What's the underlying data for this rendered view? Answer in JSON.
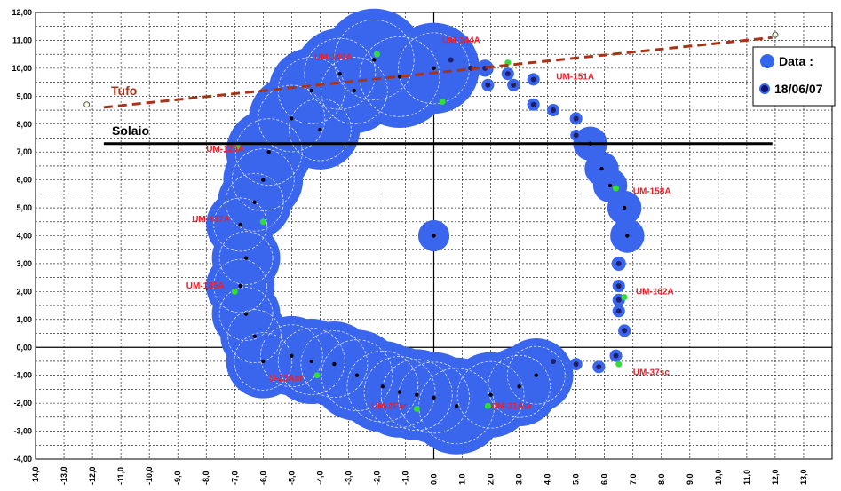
{
  "chart_data": {
    "type": "scatter",
    "x_ticks": [
      "-14,0",
      "-13,0",
      "-12,0",
      "-11,0",
      "-10,0",
      "-9,0",
      "-8,0",
      "-7,0",
      "-6,0",
      "-5,0",
      "-4,0",
      "-3,0",
      "-2,0",
      "-1,0",
      "0,0",
      "1,0",
      "2,0",
      "3,0",
      "4,0",
      "5,0",
      "6,0",
      "7,0",
      "8,0",
      "9,0",
      "10,0",
      "11,0",
      "12,0",
      "13,0"
    ],
    "y_ticks": [
      "-4,00",
      "-3,00",
      "-2,00",
      "-1,00",
      "0,00",
      "1,00",
      "2,00",
      "3,00",
      "4,00",
      "5,00",
      "6,00",
      "7,00",
      "8,00",
      "9,00",
      "10,00",
      "11,00",
      "12,00"
    ],
    "xlim": [
      -14,
      14
    ],
    "ylim": [
      -4,
      12
    ],
    "grid": true,
    "legend": {
      "placement": "top-right",
      "entries": [
        {
          "label": "Data :",
          "color": "#3366ee"
        },
        {
          "label": "18/06/07",
          "color": "#101070"
        }
      ]
    },
    "colors": {
      "bubble": "#3a66ee",
      "center_dot": "#000000",
      "green_dot": "#33dd33",
      "small_marker": "#20206a",
      "tufo_line": "#a83418",
      "solaio_line": "#000000",
      "label_red": "#e8202a"
    },
    "series": [
      {
        "name": "Data :",
        "comment_free": true,
        "points": [
          {
            "x": -2.1,
            "y": 10.3,
            "r": 1.8
          },
          {
            "x": -1.2,
            "y": 9.7,
            "r": 1.8
          },
          {
            "x": 0.0,
            "y": 10.0,
            "r": 1.6
          },
          {
            "x": -3.3,
            "y": 9.8,
            "r": 1.6
          },
          {
            "x": -2.8,
            "y": 9.2,
            "r": 1.5
          },
          {
            "x": -4.3,
            "y": 9.2,
            "r": 1.5
          },
          {
            "x": -5.0,
            "y": 8.2,
            "r": 1.5
          },
          {
            "x": -4.0,
            "y": 7.8,
            "r": 1.4
          },
          {
            "x": -5.8,
            "y": 7.0,
            "r": 1.5
          },
          {
            "x": -6.0,
            "y": 6.0,
            "r": 1.4
          },
          {
            "x": -6.3,
            "y": 5.2,
            "r": 1.3
          },
          {
            "x": -6.8,
            "y": 4.4,
            "r": 1.2
          },
          {
            "x": -6.6,
            "y": 3.2,
            "r": 1.2
          },
          {
            "x": -6.8,
            "y": 2.2,
            "r": 1.2
          },
          {
            "x": -6.6,
            "y": 1.2,
            "r": 1.2
          },
          {
            "x": -6.3,
            "y": 0.4,
            "r": 1.2
          },
          {
            "x": -6.0,
            "y": -0.5,
            "r": 1.3
          },
          {
            "x": -5.0,
            "y": -0.3,
            "r": 1.4
          },
          {
            "x": -4.3,
            "y": -0.5,
            "r": 1.5
          },
          {
            "x": -3.5,
            "y": -0.6,
            "r": 1.5
          },
          {
            "x": -2.7,
            "y": -1.0,
            "r": 1.6
          },
          {
            "x": -1.8,
            "y": -1.4,
            "r": 1.6
          },
          {
            "x": -1.2,
            "y": -1.6,
            "r": 1.6
          },
          {
            "x": -0.6,
            "y": -1.7,
            "r": 1.6
          },
          {
            "x": 0.0,
            "y": -1.8,
            "r": 1.6
          },
          {
            "x": 0.8,
            "y": -2.1,
            "r": 1.7
          },
          {
            "x": 2.0,
            "y": -1.7,
            "r": 1.5
          },
          {
            "x": 3.0,
            "y": -1.4,
            "r": 1.4
          },
          {
            "x": 3.6,
            "y": -1.0,
            "r": 1.3
          },
          {
            "x": 5.5,
            "y": 7.3,
            "r": 0.6
          },
          {
            "x": 5.9,
            "y": 6.4,
            "r": 0.6
          },
          {
            "x": 6.2,
            "y": 5.8,
            "r": 0.6
          },
          {
            "x": 6.7,
            "y": 5.0,
            "r": 0.6
          },
          {
            "x": 6.8,
            "y": 4.0,
            "r": 0.6
          },
          {
            "x": 0.0,
            "y": 4.0,
            "r": 0.55
          },
          {
            "x": 0.6,
            "y": 10.3,
            "r": 0.35
          },
          {
            "x": 1.3,
            "y": 10.0,
            "r": 0.3
          },
          {
            "x": 1.8,
            "y": 10.0,
            "r": 0.3
          },
          {
            "x": 2.6,
            "y": 9.8,
            "r": 0.22
          },
          {
            "x": 1.9,
            "y": 9.4,
            "r": 0.22
          },
          {
            "x": 2.8,
            "y": 9.4,
            "r": 0.22
          },
          {
            "x": 3.5,
            "y": 9.6,
            "r": 0.22
          },
          {
            "x": 3.5,
            "y": 8.7,
            "r": 0.22
          },
          {
            "x": 4.2,
            "y": 8.5,
            "r": 0.22
          },
          {
            "x": 5.0,
            "y": 8.2,
            "r": 0.22
          },
          {
            "x": 5.0,
            "y": 7.6,
            "r": 0.2
          },
          {
            "x": 6.5,
            "y": 3.0,
            "r": 0.25
          },
          {
            "x": 6.5,
            "y": 2.2,
            "r": 0.22
          },
          {
            "x": 6.5,
            "y": 1.7,
            "r": 0.22
          },
          {
            "x": 6.5,
            "y": 1.3,
            "r": 0.22
          },
          {
            "x": 6.7,
            "y": 0.6,
            "r": 0.22
          },
          {
            "x": 6.4,
            "y": -0.3,
            "r": 0.22
          },
          {
            "x": 5.8,
            "y": -0.7,
            "r": 0.22
          },
          {
            "x": 5.0,
            "y": -0.6,
            "r": 0.22
          },
          {
            "x": 4.2,
            "y": -0.5,
            "r": 0.2
          }
        ]
      }
    ],
    "green_points": [
      {
        "x": -2.0,
        "y": 10.5
      },
      {
        "x": 0.3,
        "y": 8.8
      },
      {
        "x": 2.6,
        "y": 10.2
      },
      {
        "x": -6.9,
        "y": 7.2
      },
      {
        "x": -6.0,
        "y": 4.5
      },
      {
        "x": -7.0,
        "y": 2.0
      },
      {
        "x": -4.1,
        "y": -1.0
      },
      {
        "x": -0.6,
        "y": -2.2
      },
      {
        "x": 1.9,
        "y": -2.1
      },
      {
        "x": 6.4,
        "y": 5.7
      },
      {
        "x": 6.7,
        "y": 1.8
      },
      {
        "x": 6.5,
        "y": -0.6
      }
    ],
    "labels": [
      {
        "text": "UM-144A",
        "x": 0.3,
        "y": 10.9
      },
      {
        "text": "UM-140A",
        "x": -4.2,
        "y": 10.3
      },
      {
        "text": "UM-151A",
        "x": 4.3,
        "y": 9.6
      },
      {
        "text": "UM-129A",
        "x": -8.0,
        "y": 7.0
      },
      {
        "text": "UM-158A",
        "x": 7.0,
        "y": 5.5
      },
      {
        "text": "UM-137A",
        "x": -8.5,
        "y": 4.5
      },
      {
        "text": "UM-135A",
        "x": -8.7,
        "y": 2.1
      },
      {
        "text": "UM-162A",
        "x": 7.1,
        "y": 1.9
      },
      {
        "text": "UM-37sc",
        "x": 7.0,
        "y": -1.0
      },
      {
        "text": "U-23Asr",
        "x": -5.8,
        "y": -1.2
      },
      {
        "text": "UM-2Far",
        "x": -2.2,
        "y": -2.2
      },
      {
        "text": "UM-31Asr",
        "x": 2.0,
        "y": -2.2
      }
    ],
    "tufo": {
      "label": "Tufo",
      "x": [
        -11.6,
        11.9
      ],
      "y": [
        8.6,
        11.1
      ],
      "end_markers": [
        {
          "x": -12.2,
          "y": 8.7
        },
        {
          "x": 12.0,
          "y": 11.2
        }
      ]
    },
    "solaio": {
      "label": "Solaio",
      "x": [
        -11.6,
        11.9
      ],
      "y": [
        7.3,
        7.3
      ]
    }
  }
}
